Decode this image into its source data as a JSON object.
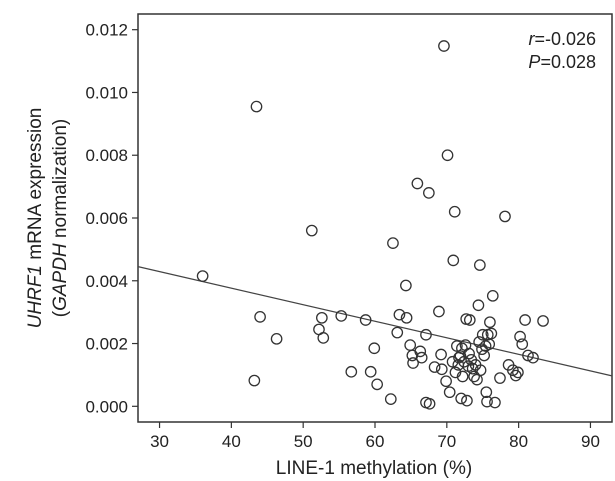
{
  "chart_data": {
    "type": "scatter",
    "ylabel_line1_italic": "UHRF1",
    "ylabel_line1_rest": " mRNA expression",
    "ylabel_line2_open": "(",
    "ylabel_line2_italic": "GAPDH",
    "ylabel_line2_rest": " normalization)",
    "xlabel": "LINE-1 methylation (%)",
    "xlim": [
      27,
      93
    ],
    "ylim": [
      -0.0005,
      0.0125
    ],
    "xticks": [
      "30",
      "40",
      "50",
      "60",
      "70",
      "80",
      "90"
    ],
    "xtick_values": [
      30,
      40,
      50,
      60,
      70,
      80,
      90
    ],
    "yticks": [
      "0.000",
      "0.002",
      "0.004",
      "0.006",
      "0.008",
      "0.010",
      "0.012"
    ],
    "ytick_values": [
      0.0,
      0.002,
      0.004,
      0.006,
      0.008,
      0.01,
      0.012
    ],
    "grid": false,
    "annotations": {
      "r_label": "r",
      "r_value": "=-0.026",
      "p_label": "P",
      "p_value": "=0.028"
    },
    "regression_line": {
      "x": [
        27,
        93
      ],
      "y": [
        0.00445,
        0.00097
      ]
    },
    "points": [
      [
        36,
        0.00415
      ],
      [
        43.2,
        0.00082
      ],
      [
        43.5,
        0.00955
      ],
      [
        44,
        0.00285
      ],
      [
        46.3,
        0.00215
      ],
      [
        51.2,
        0.0056
      ],
      [
        52.2,
        0.00245
      ],
      [
        52.6,
        0.00282
      ],
      [
        52.8,
        0.00218
      ],
      [
        55.3,
        0.00288
      ],
      [
        56.7,
        0.0011
      ],
      [
        58.7,
        0.00275
      ],
      [
        59.4,
        0.0011
      ],
      [
        59.9,
        0.00185
      ],
      [
        60.3,
        0.0007
      ],
      [
        62.2,
        0.00023
      ],
      [
        62.5,
        0.0052
      ],
      [
        63.1,
        0.00235
      ],
      [
        63.4,
        0.00292
      ],
      [
        64.3,
        0.00385
      ],
      [
        64.4,
        0.00282
      ],
      [
        64.9,
        0.00195
      ],
      [
        65.2,
        0.00162
      ],
      [
        65.3,
        0.00138
      ],
      [
        65.9,
        0.0071
      ],
      [
        66.3,
        0.00175
      ],
      [
        66.5,
        0.00155
      ],
      [
        67.1,
        0.00012
      ],
      [
        67.6,
        8e-05
      ],
      [
        67.5,
        0.0068
      ],
      [
        67.1,
        0.00228
      ],
      [
        68.3,
        0.00125
      ],
      [
        68.9,
        0.00302
      ],
      [
        69.2,
        0.00165
      ],
      [
        69.3,
        0.00118
      ],
      [
        69.6,
        0.01148
      ],
      [
        69.9,
        0.0008
      ],
      [
        70.1,
        0.008
      ],
      [
        70.4,
        0.00045
      ],
      [
        70.8,
        0.00142
      ],
      [
        70.9,
        0.00465
      ],
      [
        71.1,
        0.0062
      ],
      [
        71.2,
        0.00108
      ],
      [
        71.4,
        0.00192
      ],
      [
        71.6,
        0.00132
      ],
      [
        71.7,
        0.00155
      ],
      [
        71.9,
        0.0016
      ],
      [
        72.0,
        0.00025
      ],
      [
        72.1,
        0.00185
      ],
      [
        72.2,
        0.00095
      ],
      [
        72.4,
        0.00142
      ],
      [
        72.6,
        0.00195
      ],
      [
        72.7,
        0.00278
      ],
      [
        72.8,
        0.00018
      ],
      [
        73.0,
        0.00128
      ],
      [
        73.1,
        0.00168
      ],
      [
        73.2,
        0.00275
      ],
      [
        73.4,
        0.00148
      ],
      [
        73.6,
        0.0012
      ],
      [
        73.8,
        0.00095
      ],
      [
        74.0,
        0.00132
      ],
      [
        74.2,
        0.00085
      ],
      [
        74.4,
        0.00322
      ],
      [
        74.5,
        0.00205
      ],
      [
        74.6,
        0.0045
      ],
      [
        74.7,
        0.00115
      ],
      [
        74.9,
        0.00182
      ],
      [
        75.0,
        0.00228
      ],
      [
        75.2,
        0.00162
      ],
      [
        75.4,
        0.00192
      ],
      [
        75.5,
        0.00045
      ],
      [
        75.6,
        0.00015
      ],
      [
        75.7,
        0.00228
      ],
      [
        75.9,
        0.00198
      ],
      [
        76.0,
        0.00268
      ],
      [
        76.2,
        0.00232
      ],
      [
        76.4,
        0.00352
      ],
      [
        76.7,
        0.00012
      ],
      [
        77.4,
        0.0009
      ],
      [
        78.1,
        0.00605
      ],
      [
        78.6,
        0.00132
      ],
      [
        79.2,
        0.00115
      ],
      [
        79.6,
        0.00098
      ],
      [
        79.9,
        0.00108
      ],
      [
        80.2,
        0.00222
      ],
      [
        80.5,
        0.00198
      ],
      [
        80.9,
        0.00275
      ],
      [
        81.3,
        0.00162
      ],
      [
        82.0,
        0.00155
      ],
      [
        83.4,
        0.00272
      ]
    ]
  }
}
